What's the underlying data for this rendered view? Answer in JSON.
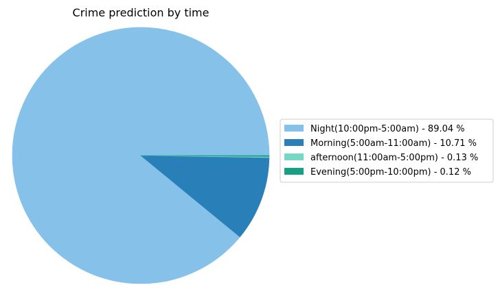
{
  "chart_data": {
    "type": "pie",
    "title": "Crime prediction by time",
    "categories": [
      "Night(10:00pm-5:00am)",
      "Morning(5:00am-11:00am)",
      "afternoon(11:00am-5:00pm)",
      "Evening(5:00pm-10:00pm)"
    ],
    "values": [
      89.04,
      10.71,
      0.13,
      0.12
    ],
    "legend_labels": [
      "Night(10:00pm-5:00am) - 89.04 %",
      "Morning(5:00am-11:00am) - 10.71 %",
      "afternoon(11:00am-5:00pm) - 0.13 %",
      "Evening(5:00pm-10:00pm) - 0.12 %"
    ],
    "colors": [
      "#85c1e9",
      "#2980b9",
      "#76d7c4",
      "#16a085"
    ],
    "legend_position": "center-right",
    "start_angle": 0
  }
}
